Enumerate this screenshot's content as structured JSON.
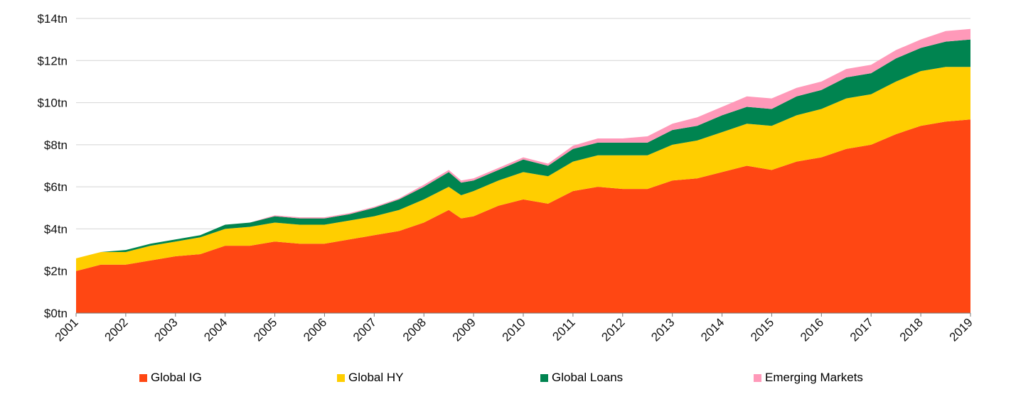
{
  "chart_data": {
    "type": "area",
    "stacked": true,
    "grid": true,
    "legend_position": "bottom",
    "ylim": [
      0,
      14
    ],
    "y_ticks": [
      "$0tn",
      "$2tn",
      "$4tn",
      "$6tn",
      "$8tn",
      "$10tn",
      "$12tn",
      "$14tn"
    ],
    "x_ticks": [
      "2001",
      "2002",
      "2003",
      "2004",
      "2005",
      "2006",
      "2007",
      "2008",
      "2009",
      "2010",
      "2011",
      "2012",
      "2013",
      "2014",
      "2015",
      "2016",
      "2017",
      "2018",
      "2019"
    ],
    "x": [
      2001.0,
      2001.5,
      2002.0,
      2002.5,
      2003.0,
      2003.5,
      2004.0,
      2004.5,
      2005.0,
      2005.5,
      2006.0,
      2006.5,
      2007.0,
      2007.5,
      2008.0,
      2008.5,
      2008.75,
      2009.0,
      2009.5,
      2010.0,
      2010.5,
      2011.0,
      2011.5,
      2012.0,
      2012.5,
      2013.0,
      2013.5,
      2014.0,
      2014.5,
      2015.0,
      2015.5,
      2016.0,
      2016.5,
      2017.0,
      2017.5,
      2018.0,
      2018.5,
      2019.0
    ],
    "series": [
      {
        "name": "Global IG",
        "color": "#ff4713",
        "values": [
          2.0,
          2.3,
          2.3,
          2.5,
          2.7,
          2.8,
          3.2,
          3.2,
          3.4,
          3.3,
          3.3,
          3.5,
          3.7,
          3.9,
          4.3,
          4.9,
          4.5,
          4.6,
          5.1,
          5.4,
          5.2,
          5.8,
          6.0,
          5.9,
          5.9,
          6.3,
          6.4,
          6.7,
          7.0,
          6.8,
          7.2,
          7.4,
          7.8,
          8.0,
          8.5,
          8.9,
          9.1,
          9.2
        ]
      },
      {
        "name": "Global HY",
        "color": "#ffce00",
        "values": [
          0.6,
          0.6,
          0.6,
          0.7,
          0.7,
          0.8,
          0.8,
          0.9,
          0.9,
          0.9,
          0.9,
          0.9,
          0.9,
          1.0,
          1.1,
          1.1,
          1.1,
          1.2,
          1.2,
          1.3,
          1.3,
          1.4,
          1.5,
          1.6,
          1.6,
          1.7,
          1.8,
          1.9,
          2.0,
          2.1,
          2.2,
          2.3,
          2.4,
          2.4,
          2.5,
          2.6,
          2.6,
          2.5
        ]
      },
      {
        "name": "Global Loans",
        "color": "#008450",
        "values": [
          0.0,
          0.0,
          0.1,
          0.1,
          0.1,
          0.1,
          0.2,
          0.2,
          0.3,
          0.3,
          0.3,
          0.3,
          0.4,
          0.5,
          0.6,
          0.7,
          0.6,
          0.5,
          0.5,
          0.6,
          0.5,
          0.6,
          0.6,
          0.6,
          0.6,
          0.7,
          0.7,
          0.8,
          0.8,
          0.8,
          0.9,
          0.9,
          1.0,
          1.0,
          1.1,
          1.1,
          1.2,
          1.3
        ]
      },
      {
        "name": "Emerging Markets",
        "color": "#ff99b9",
        "values": [
          0.0,
          0.0,
          0.0,
          0.0,
          0.0,
          0.0,
          0.0,
          0.0,
          0.05,
          0.05,
          0.05,
          0.05,
          0.05,
          0.05,
          0.1,
          0.1,
          0.1,
          0.1,
          0.1,
          0.1,
          0.1,
          0.15,
          0.2,
          0.2,
          0.3,
          0.3,
          0.4,
          0.4,
          0.5,
          0.5,
          0.4,
          0.4,
          0.4,
          0.4,
          0.4,
          0.4,
          0.5,
          0.5
        ]
      }
    ]
  }
}
